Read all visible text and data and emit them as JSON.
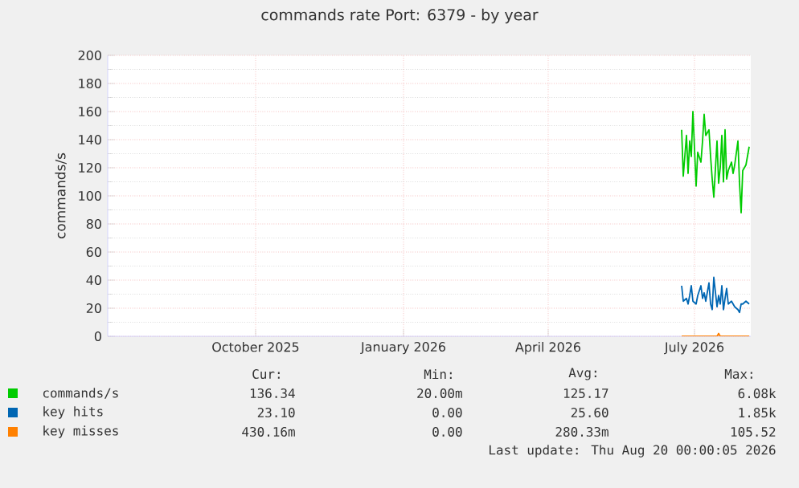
{
  "chart_data": {
    "type": "line",
    "title": "commands rate Port: 6379 - by year",
    "ylabel": "commands/s",
    "xlim": [
      "2025-07-16",
      "2026-08-20"
    ],
    "ylim": [
      0,
      200
    ],
    "xticks": [
      {
        "value": "2025-10-16",
        "label": "October 2025"
      },
      {
        "value": "2026-01-16",
        "label": "January 2026"
      },
      {
        "value": "2026-04-16",
        "label": "April 2026"
      },
      {
        "value": "2026-07-16",
        "label": "July 2026"
      }
    ],
    "yticks": [
      0,
      20,
      40,
      60,
      80,
      100,
      120,
      140,
      160,
      180,
      200
    ],
    "grid": true,
    "legend": "bottom",
    "marker": "none",
    "line_style": "solid",
    "series": [
      {
        "name": "commands/s",
        "color": "#00cc00",
        "x": [
          "2026-07-08",
          "2026-07-09",
          "2026-07-11",
          "2026-07-12",
          "2026-07-13",
          "2026-07-14",
          "2026-07-15",
          "2026-07-17",
          "2026-07-18",
          "2026-07-20",
          "2026-07-21",
          "2026-07-22",
          "2026-07-23",
          "2026-07-25",
          "2026-07-26",
          "2026-07-27",
          "2026-07-28",
          "2026-07-30",
          "2026-07-31",
          "2026-08-01",
          "2026-08-02",
          "2026-08-03",
          "2026-08-04",
          "2026-08-05",
          "2026-08-06",
          "2026-08-08",
          "2026-08-09",
          "2026-08-10",
          "2026-08-12",
          "2026-08-13",
          "2026-08-14",
          "2026-08-15",
          "2026-08-17",
          "2026-08-19"
        ],
        "values": [
          147,
          114,
          143,
          116,
          139,
          128,
          160,
          107,
          131,
          124,
          139,
          158,
          143,
          147,
          128,
          112,
          99,
          139,
          109,
          120,
          143,
          110,
          147,
          112,
          118,
          124,
          116,
          122,
          139,
          109,
          88,
          118,
          122,
          135
        ]
      },
      {
        "name": "key hits",
        "color": "#0066b3",
        "x": [
          "2026-07-08",
          "2026-07-09",
          "2026-07-11",
          "2026-07-12",
          "2026-07-13",
          "2026-07-14",
          "2026-07-15",
          "2026-07-17",
          "2026-07-18",
          "2026-07-20",
          "2026-07-21",
          "2026-07-22",
          "2026-07-23",
          "2026-07-25",
          "2026-07-26",
          "2026-07-27",
          "2026-07-28",
          "2026-07-30",
          "2026-07-31",
          "2026-08-01",
          "2026-08-02",
          "2026-08-03",
          "2026-08-04",
          "2026-08-05",
          "2026-08-06",
          "2026-08-08",
          "2026-08-09",
          "2026-08-10",
          "2026-08-12",
          "2026-08-13",
          "2026-08-14",
          "2026-08-15",
          "2026-08-17",
          "2026-08-19"
        ],
        "values": [
          36,
          25,
          27,
          23,
          29,
          36,
          25,
          23,
          29,
          36,
          27,
          31,
          25,
          38,
          23,
          19,
          42,
          21,
          29,
          23,
          36,
          19,
          27,
          34,
          23,
          25,
          23,
          21,
          19,
          17,
          23,
          23,
          25,
          23
        ]
      },
      {
        "name": "key misses",
        "color": "#ff8000",
        "x": [
          "2026-07-08",
          "2026-07-30",
          "2026-07-31",
          "2026-08-01",
          "2026-08-19"
        ],
        "values": [
          0,
          0,
          2,
          0,
          0
        ]
      }
    ],
    "annotations": [
      "Cur:",
      "Min:",
      "Avg:",
      "Max:",
      "136.34",
      "20.00m",
      "125.17",
      "6.08k",
      "23.10",
      "0.00",
      "25.60",
      "1.85k",
      "430.16m",
      "0.00",
      "280.33m",
      "105.52",
      "Last update:  Thu Aug 20 00:00:05 2026"
    ]
  }
}
